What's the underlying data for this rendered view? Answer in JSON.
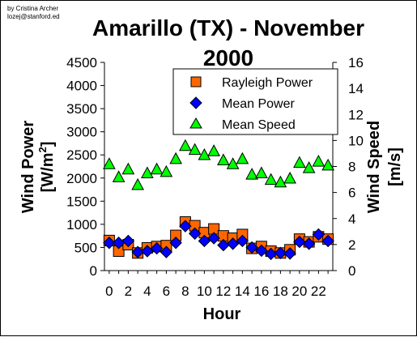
{
  "credit": {
    "line1": "by Cristina Archer",
    "line2": "lozej@stanford.ed"
  },
  "chart_data": {
    "type": "scatter",
    "title_line1": "Amarillo (TX) - November",
    "title_line2": "2000",
    "xlabel": "Hour",
    "ylabel_left": "Wind Power [W/m2]",
    "ylabel_left_line1": "Wind Power",
    "ylabel_left_line2_base": "[W/m",
    "ylabel_left_line2_sup": "2",
    "ylabel_left_line2_end": "]",
    "ylabel_right": "Wind Speed [m/s]",
    "ylabel_right_line1": "Wind Speed",
    "ylabel_right_line2": "[m/s]",
    "xlim": [
      -0.5,
      23.5
    ],
    "ylim_left": [
      0,
      4500
    ],
    "ylim_right": [
      0,
      16
    ],
    "x_ticks": [
      0,
      2,
      4,
      6,
      8,
      10,
      12,
      14,
      16,
      18,
      20,
      22
    ],
    "x_tick_labels": [
      "0",
      "2",
      "4",
      "6",
      "8",
      "10",
      "12",
      "14",
      "16",
      "18",
      "20",
      "22"
    ],
    "y_left_ticks": [
      0,
      500,
      1000,
      1500,
      2000,
      2500,
      3000,
      3500,
      4000,
      4500
    ],
    "y_left_tick_labels": [
      "0",
      "500",
      "1000",
      "1500",
      "2000",
      "2500",
      "3000",
      "3500",
      "4000",
      "4500"
    ],
    "y_right_ticks": [
      0,
      2,
      4,
      6,
      8,
      10,
      12,
      14,
      16
    ],
    "y_right_tick_labels": [
      "0",
      "2",
      "4",
      "6",
      "8",
      "10",
      "12",
      "14",
      "16"
    ],
    "grid": false,
    "legend_position": "top-right",
    "x": [
      0,
      1,
      2,
      3,
      4,
      5,
      6,
      7,
      8,
      9,
      10,
      11,
      12,
      13,
      14,
      15,
      16,
      17,
      18,
      19,
      20,
      21,
      22,
      23
    ],
    "series": [
      {
        "name": "Rayleigh Power",
        "axis": "left",
        "marker": "square",
        "color": "#FF6600",
        "values": [
          650,
          420,
          560,
          380,
          490,
          520,
          540,
          760,
          1050,
          970,
          820,
          900,
          750,
          700,
          780,
          480,
          520,
          420,
          380,
          450,
          680,
          620,
          730,
          680
        ]
      },
      {
        "name": "Mean Power",
        "axis": "left",
        "marker": "diamond",
        "color": "#0000FF",
        "values": [
          600,
          600,
          640,
          400,
          420,
          480,
          400,
          600,
          960,
          800,
          640,
          700,
          550,
          580,
          640,
          500,
          430,
          360,
          380,
          370,
          620,
          580,
          780,
          640
        ]
      },
      {
        "name": "Mean Speed",
        "axis": "right",
        "marker": "triangle",
        "color": "#00FF00",
        "values": [
          8.2,
          7.2,
          7.8,
          6.6,
          7.5,
          7.8,
          7.6,
          8.6,
          9.6,
          9.3,
          8.9,
          9.2,
          8.5,
          8.2,
          8.6,
          7.4,
          7.5,
          7.0,
          6.8,
          7.1,
          8.3,
          7.9,
          8.4,
          8.1
        ]
      }
    ]
  },
  "colors": {
    "marker_outline": "#000000",
    "axis": "#000000",
    "background": "#FFFFFF"
  }
}
